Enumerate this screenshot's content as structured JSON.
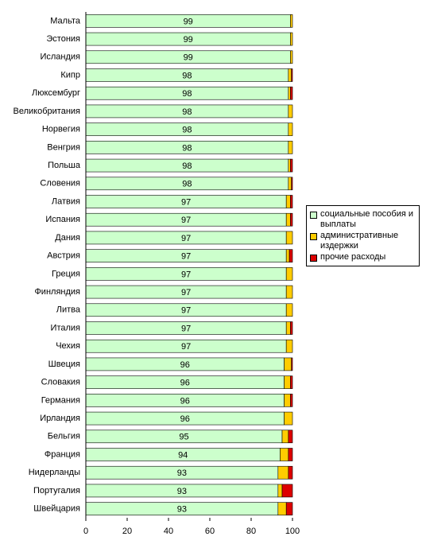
{
  "chart_data": {
    "type": "stacked-bar-horizontal",
    "categories": [
      "Мальта",
      "Эстония",
      "Исландия",
      "Кипр",
      "Люксембург",
      "Великобритания",
      "Норвегия",
      "Венгрия",
      "Польша",
      "Словения",
      "Латвия",
      "Испания",
      "Дания",
      "Австрия",
      "Греция",
      "Финляндия",
      "Литва",
      "Италия",
      "Чехия",
      "Швеция",
      "Словакия",
      "Германия",
      "Ирландия",
      "Бельгия",
      "Франция",
      "Нидерланды",
      "Португалия",
      "Швейцария"
    ],
    "series": [
      {
        "name": "социальные пособия и выплаты",
        "color": "#ccffcc",
        "values": [
          99,
          99,
          99,
          98,
          98,
          98,
          98,
          98,
          98,
          98,
          97,
          97,
          97,
          97,
          97,
          97,
          97,
          97,
          97,
          96,
          96,
          96,
          96,
          95,
          94,
          93,
          93,
          93
        ]
      },
      {
        "name": "административные издержки",
        "color": "#ffcc00",
        "values": [
          1,
          1,
          1,
          1.5,
          1,
          2,
          2,
          2,
          1,
          1.5,
          2,
          2,
          3,
          1.5,
          3,
          3,
          3,
          2,
          3,
          3.5,
          3,
          3,
          4,
          3,
          4,
          5,
          2,
          4
        ]
      },
      {
        "name": "прочие расходы",
        "color": "#dd0000",
        "values": [
          0,
          0,
          0,
          0.5,
          1,
          0,
          0,
          0,
          1,
          0.5,
          1,
          1,
          0,
          1.5,
          0,
          0,
          0,
          1,
          0,
          0.5,
          1,
          1,
          0,
          2,
          2,
          2,
          5,
          3
        ]
      }
    ],
    "xlim": [
      0,
      100
    ],
    "xticks": [
      0,
      20,
      40,
      60,
      80,
      100
    ],
    "data_labels": true
  }
}
